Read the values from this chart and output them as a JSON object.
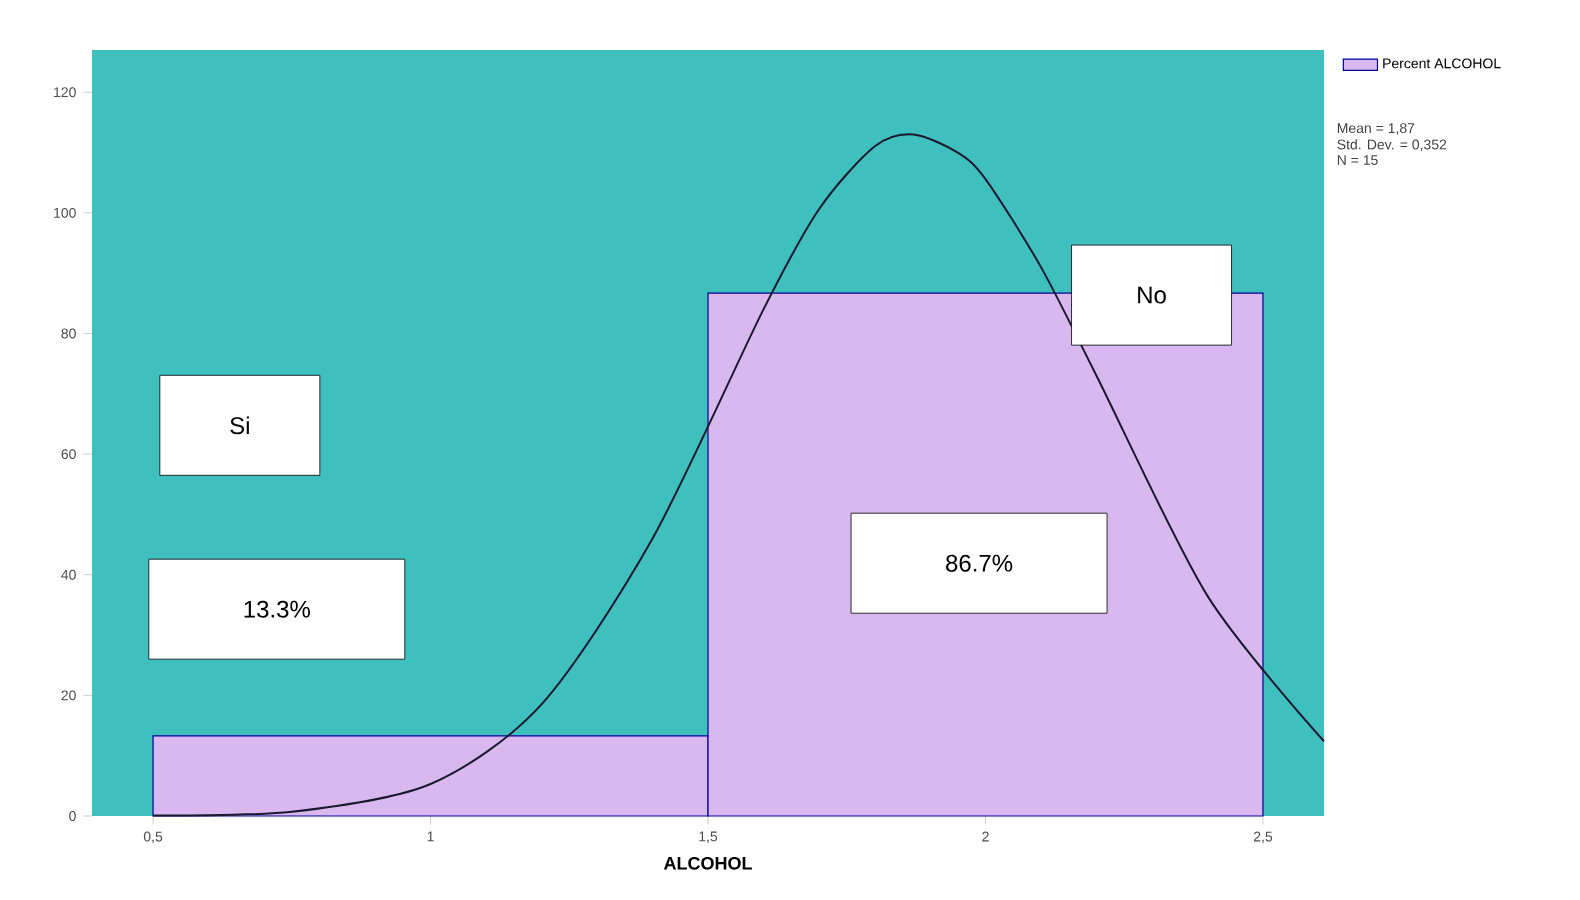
{
  "chart_data": {
    "type": "histogram",
    "xlabel": "ALCOHOL",
    "bins": [
      0.5,
      1.5,
      2.5
    ],
    "series": [
      {
        "name": "Percent ALCOHOL",
        "color": "#d9b8ef",
        "values": [
          13.3,
          86.7
        ]
      },
      {
        "type": "line",
        "color": "#1a1a2e",
        "x": [
          0.5,
          0.75,
          1.0,
          1.2,
          1.4,
          1.6,
          1.7,
          1.8,
          1.87,
          1.95,
          2.0,
          2.1,
          2.2,
          2.4,
          2.61
        ],
        "values": [
          0.1,
          0.7,
          5.3,
          18.5,
          46,
          84,
          100.6,
          111,
          113,
          110,
          105.6,
          91,
          73,
          36.5,
          12.4
        ]
      }
    ],
    "xlim": [
      0.39,
      2.61
    ],
    "ylim": [
      0,
      127
    ],
    "xticks": [
      {
        "value": 0.5,
        "label": "0,5"
      },
      1,
      {
        "value": 1.5,
        "label": "1,5"
      },
      2,
      {
        "value": 2.5,
        "label": "2,5"
      }
    ],
    "yticks": [
      0,
      20,
      40,
      60,
      80,
      100,
      120
    ],
    "legend": "top right",
    "annotations": [
      "Mean = 1,87",
      "Std. Dev. = 0,352",
      "N = 15",
      "Si",
      "13.3%",
      "No",
      "86.7%"
    ]
  }
}
